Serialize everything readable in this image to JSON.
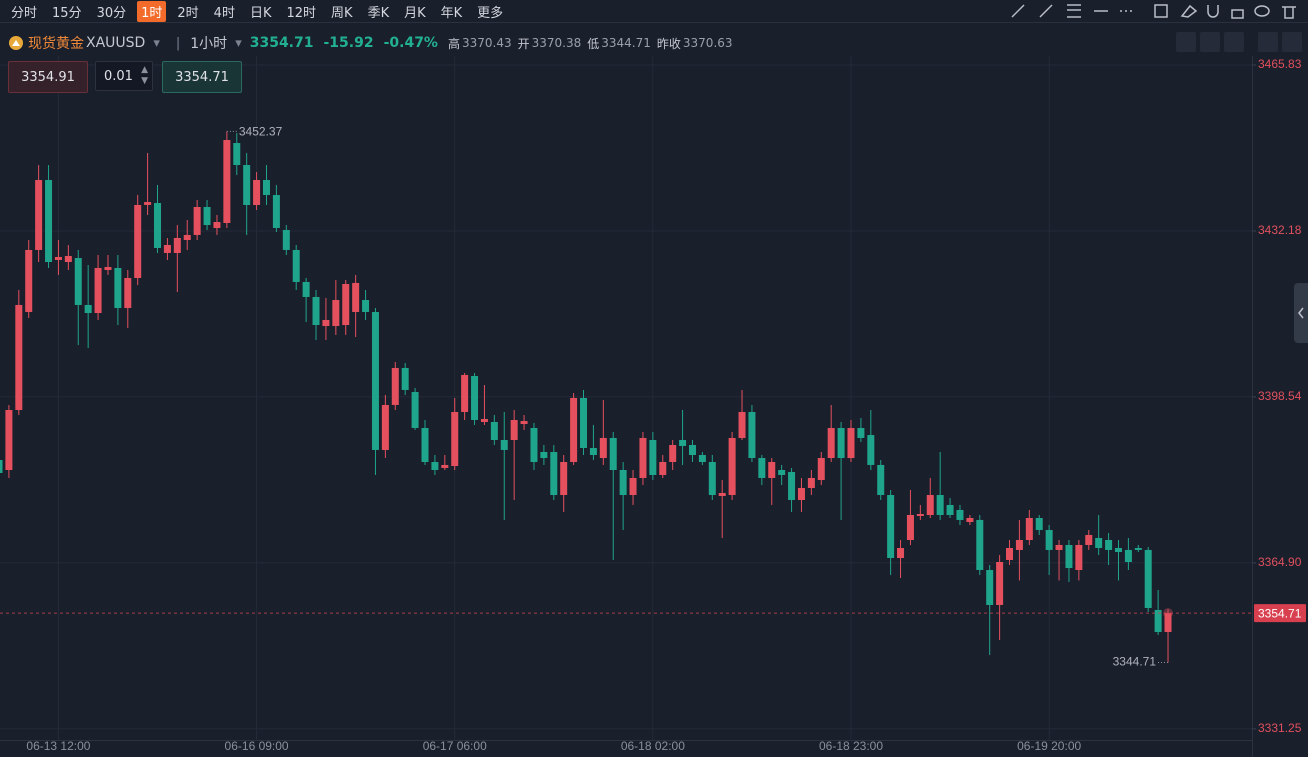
{
  "toolbar": {
    "timeframes": [
      "分时",
      "15分",
      "30分",
      "1时",
      "2时",
      "4时",
      "日K",
      "12时",
      "周K",
      "季K",
      "月K",
      "年K",
      "更多"
    ],
    "active": 3
  },
  "quote": {
    "name": "现货黄金",
    "code": "XAUUSD",
    "interval": "1小时",
    "price": "3354.71",
    "change": "-15.92",
    "change_pct": "-0.47%",
    "high_label": "高",
    "high": "3370.43",
    "open_label": "开",
    "open": "3370.38",
    "low_label": "低",
    "low": "3344.71",
    "prev_label": "昨收",
    "prev": "3370.63"
  },
  "order": {
    "sell": "3354.91",
    "qty": "0.01",
    "buy": "3354.71"
  },
  "chart_data": {
    "type": "candlestick",
    "up_color": "#e5505e",
    "down_color": "#1fa58c",
    "grid": true,
    "ylim": [
      3329.0,
      3479.0
    ],
    "yticks": [
      3465.83,
      3432.18,
      3398.54,
      {
        "value": 3364.9,
        "label": "3364.90"
      },
      3331.25
    ],
    "categories": [
      null,
      null,
      null,
      null,
      null,
      null,
      "06-13 12:00",
      null,
      null,
      null,
      null,
      null,
      null,
      null,
      null,
      null,
      null,
      null,
      null,
      null,
      null,
      null,
      null,
      null,
      null,
      null,
      "06-16 09:00",
      null,
      null,
      null,
      null,
      null,
      null,
      null,
      null,
      null,
      null,
      null,
      null,
      null,
      null,
      null,
      null,
      null,
      null,
      null,
      "06-17 06:00",
      null,
      null,
      null,
      null,
      null,
      null,
      null,
      null,
      null,
      null,
      null,
      null,
      null,
      null,
      null,
      null,
      null,
      null,
      null,
      "06-18 02:00",
      null,
      null,
      null,
      null,
      null,
      null,
      null,
      null,
      null,
      null,
      null,
      null,
      null,
      null,
      null,
      null,
      null,
      null,
      null,
      "06-18 23:00",
      null,
      null,
      null,
      null,
      null,
      null,
      null,
      null,
      null,
      null,
      null,
      null,
      null,
      null,
      null,
      null,
      null,
      null,
      null,
      "06-19 20:00",
      null,
      null,
      null,
      null,
      null,
      null,
      null,
      null,
      null,
      null,
      null,
      null
    ],
    "open": [
      3385.76,
      3383.73,
      3395.89,
      3415.76,
      3428.33,
      3442.51,
      3426.3,
      3425.89,
      3426.7,
      3417.18,
      3415.55,
      3424.27,
      3424.68,
      3416.57,
      3422.65,
      3437.45,
      3437.85,
      3427.72,
      3427.72,
      3430.35,
      3431.37,
      3437.04,
      3432.78,
      3433.8,
      3450.01,
      3445.55,
      3437.45,
      3442.51,
      3439.47,
      3432.38,
      3428.33,
      3421.84,
      3418.8,
      3412.92,
      3412.92,
      3413.12,
      3415.76,
      3418.19,
      3415.76,
      3387.79,
      3396.91,
      3404.41,
      3399.54,
      3392.24,
      3385.35,
      3384.14,
      3384.54,
      3395.49,
      3402.78,
      3393.46,
      3393.46,
      3389.81,
      3389.81,
      3393.05,
      3392.24,
      3387.38,
      3387.38,
      3378.66,
      3385.35,
      3398.33,
      3388.19,
      3386.16,
      3390.22,
      3383.73,
      3378.66,
      3382.11,
      3389.81,
      3382.72,
      3385.35,
      3389.81,
      3388.8,
      3386.77,
      3385.35,
      3378.46,
      3378.66,
      3390.22,
      3395.49,
      3386.16,
      3382.11,
      3383.73,
      3383.32,
      3377.65,
      3380.08,
      3381.7,
      3386.16,
      3392.24,
      3386.16,
      3392.24,
      3390.82,
      3384.75,
      3378.66,
      3365.89,
      3369.54,
      3374.41,
      3374.61,
      3378.66,
      3376.64,
      3375.63,
      3373.19,
      3373.6,
      3363.46,
      3356.37,
      3365.49,
      3367.52,
      3369.54,
      3374.0,
      3371.57,
      3367.52,
      3368.53,
      3363.46,
      3368.53,
      3369.95,
      3369.54,
      3367.92,
      3367.52,
      3367.92,
      3367.52,
      3355.35,
      3350.89
    ],
    "high": [
      3386.77,
      3396.91,
      3420.22,
      3430.35,
      3445.55,
      3445.55,
      3430.35,
      3429.34,
      3428.33,
      3425.28,
      3427.31,
      3427.31,
      3427.31,
      3424.27,
      3439.47,
      3447.99,
      3441.5,
      3430.76,
      3433.39,
      3434.41,
      3438.46,
      3438.46,
      3435.42,
      3452.37,
      3452.04,
      3447.99,
      3444.14,
      3445.55,
      3441.5,
      3433.39,
      3429.34,
      3422.65,
      3420.22,
      3418.6,
      3422.24,
      3422.24,
      3423.26,
      3420.22,
      3416.57,
      3398.93,
      3405.62,
      3405.42,
      3400.35,
      3393.87,
      3386.77,
      3386.77,
      3398.33,
      3403.39,
      3403.39,
      3400.96,
      3394.88,
      3395.49,
      3395.89,
      3394.88,
      3393.26,
      3388.8,
      3388.8,
      3386.77,
      3399.34,
      3399.95,
      3392.85,
      3397.92,
      3391.43,
      3385.35,
      3383.73,
      3391.43,
      3391.43,
      3386.77,
      3389.81,
      3395.89,
      3389.81,
      3387.38,
      3386.77,
      3381.7,
      3391.43,
      3399.95,
      3396.91,
      3386.77,
      3386.16,
      3384.75,
      3384.14,
      3382.11,
      3383.73,
      3387.38,
      3396.91,
      3393.46,
      3393.87,
      3394.27,
      3395.89,
      3385.76,
      3379.68,
      3369.54,
      3379.68,
      3376.64,
      3382.11,
      3387.38,
      3378.05,
      3376.64,
      3374.61,
      3374.61,
      3364.47,
      3366.5,
      3369.54,
      3373.6,
      3375.63,
      3374.61,
      3372.58,
      3369.54,
      3369.54,
      3369.54,
      3371.57,
      3374.61,
      3370.96,
      3369.54,
      3369.95,
      3368.53,
      3368.12,
      3359.41,
      3355.5
    ],
    "low": [
      3382.11,
      3382.11,
      3394.88,
      3414.54,
      3425.89,
      3424.68,
      3423.26,
      3424.27,
      3409.07,
      3408.46,
      3414.14,
      3423.26,
      3413.12,
      3412.52,
      3421.23,
      3435.42,
      3427.72,
      3426.3,
      3419.81,
      3428.33,
      3430.35,
      3432.38,
      3431.37,
      3432.78,
      3443.53,
      3431.37,
      3436.43,
      3437.45,
      3431.97,
      3427.31,
      3420.22,
      3413.73,
      3410.08,
      3410.08,
      3411.1,
      3411.1,
      3410.69,
      3414.14,
      3382.72,
      3386.16,
      3395.89,
      3398.93,
      3391.84,
      3384.75,
      3382.72,
      3383.73,
      3383.73,
      3393.87,
      3392.85,
      3392.85,
      3388.8,
      3373.6,
      3377.65,
      3391.84,
      3383.73,
      3384.75,
      3377.65,
      3375.22,
      3384.75,
      3386.77,
      3385.76,
      3384.75,
      3365.49,
      3371.57,
      3376.64,
      3380.69,
      3381.7,
      3382.11,
      3383.73,
      3384.75,
      3385.35,
      3384.75,
      3377.65,
      3369.95,
      3377.65,
      3389.81,
      3385.35,
      3380.69,
      3376.64,
      3380.69,
      3375.22,
      3375.22,
      3378.66,
      3380.69,
      3385.35,
      3373.6,
      3385.35,
      3389.41,
      3383.73,
      3377.65,
      3362.45,
      3361.84,
      3368.53,
      3373.6,
      3374.0,
      3373.6,
      3374.0,
      3372.58,
      3372.58,
      3362.45,
      3346.23,
      3349.27,
      3364.47,
      3361.34,
      3368.53,
      3370.56,
      3362.45,
      3361.34,
      3361.03,
      3361.34,
      3367.52,
      3366.5,
      3364.47,
      3361.34,
      3363.46,
      3367.11,
      3354.95,
      3350.29,
      3344.71
    ],
    "close": [
      3383.12,
      3395.89,
      3417.18,
      3428.33,
      3442.51,
      3425.89,
      3426.91,
      3427.11,
      3417.18,
      3415.55,
      3424.68,
      3424.88,
      3416.57,
      3422.65,
      3437.45,
      3438.05,
      3428.73,
      3429.34,
      3430.76,
      3431.37,
      3437.04,
      3433.39,
      3434.0,
      3450.62,
      3445.55,
      3437.45,
      3442.51,
      3439.47,
      3432.78,
      3428.33,
      3421.84,
      3418.8,
      3413.12,
      3414.14,
      3418.19,
      3421.43,
      3421.64,
      3415.76,
      3387.79,
      3396.91,
      3404.41,
      3399.95,
      3392.24,
      3385.35,
      3383.73,
      3384.75,
      3395.49,
      3402.99,
      3393.87,
      3394.07,
      3389.81,
      3387.79,
      3393.87,
      3393.66,
      3385.35,
      3386.16,
      3378.66,
      3385.35,
      3398.33,
      3388.19,
      3386.77,
      3390.22,
      3383.73,
      3378.66,
      3382.11,
      3390.22,
      3382.72,
      3385.35,
      3388.8,
      3388.6,
      3386.77,
      3385.35,
      3378.66,
      3379.07,
      3390.22,
      3395.49,
      3386.16,
      3382.11,
      3385.35,
      3382.72,
      3377.65,
      3380.08,
      3382.11,
      3386.16,
      3392.24,
      3386.16,
      3392.24,
      3390.22,
      3384.75,
      3378.66,
      3365.89,
      3367.92,
      3374.61,
      3374.81,
      3378.66,
      3374.61,
      3374.61,
      3373.6,
      3374.0,
      3363.46,
      3356.37,
      3365.08,
      3367.92,
      3369.54,
      3374.0,
      3371.57,
      3367.52,
      3368.53,
      3363.86,
      3368.53,
      3370.56,
      3367.92,
      3367.52,
      3367.11,
      3365.08,
      3367.52,
      3355.76,
      3350.89,
      3354.71
    ]
  }
}
